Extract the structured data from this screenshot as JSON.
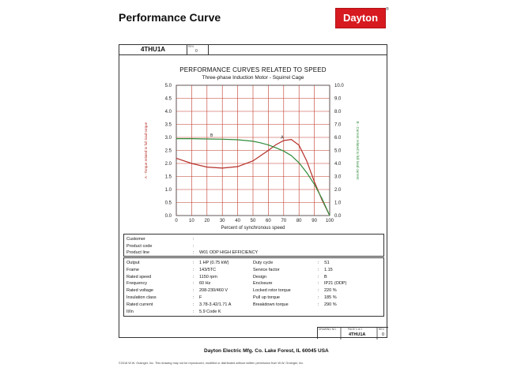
{
  "header": {
    "title": "Performance Curve",
    "logo_text": "Dayton",
    "logo_mark": "®"
  },
  "model": {
    "number": "4THU1A",
    "rev_label": "REV.",
    "rev_value": "0"
  },
  "colors": {
    "torque": "#b5302a",
    "current": "#2e8b3a",
    "grid": "#c0392b",
    "logo": "#d71920"
  },
  "chart_data": {
    "type": "line",
    "title": "PERFORMANCE CURVES RELATED TO SPEED",
    "subtitle": "Three-phase Induction Motor - Squirrel Cage",
    "xlabel": "Percent of synchronous speed",
    "ylabel_left": "A - Torque related to full load torque",
    "ylabel_right": "B - Current related to full load current",
    "xlim": [
      0,
      100
    ],
    "ylim_left": [
      0,
      5
    ],
    "ylim_right": [
      0,
      10
    ],
    "x_ticks": [
      "0",
      "10",
      "20",
      "30",
      "40",
      "50",
      "60",
      "70",
      "80",
      "90",
      "100"
    ],
    "y_left_ticks": [
      "0.0",
      "0.5",
      "1.0",
      "1.5",
      "2.0",
      "2.5",
      "3.0",
      "3.5",
      "4.0",
      "4.5",
      "5.0"
    ],
    "y_right_ticks": [
      "0.0",
      "1.0",
      "2.0",
      "3.0",
      "4.0",
      "5.0",
      "6.0",
      "7.0",
      "8.0",
      "9.0",
      "10.0"
    ],
    "grid": true,
    "series": [
      {
        "name": "A",
        "axis": "left",
        "x": [
          0,
          10,
          20,
          30,
          40,
          50,
          55,
          60,
          65,
          70,
          75,
          80,
          85,
          90,
          95,
          100
        ],
        "y": [
          2.2,
          2.0,
          1.86,
          1.82,
          1.88,
          2.1,
          2.3,
          2.5,
          2.72,
          2.88,
          2.92,
          2.7,
          2.1,
          1.3,
          0.6,
          0.0
        ]
      },
      {
        "name": "B",
        "axis": "right",
        "x": [
          0,
          10,
          20,
          30,
          40,
          50,
          55,
          60,
          65,
          70,
          75,
          80,
          85,
          90,
          95,
          100
        ],
        "y": [
          5.9,
          5.9,
          5.88,
          5.86,
          5.82,
          5.7,
          5.58,
          5.42,
          5.2,
          4.95,
          4.6,
          4.05,
          3.3,
          2.4,
          1.3,
          0.0
        ]
      }
    ]
  },
  "customer_rows": [
    {
      "label": "Customer",
      "value": ""
    },
    {
      "label": "Product code",
      "value": ""
    },
    {
      "label": "Product line",
      "value": "W01 ODP HIGH EFFICIENCY"
    }
  ],
  "spec_left": [
    {
      "label": "Output",
      "value": "1 HP (0.75 kW)"
    },
    {
      "label": "Frame",
      "value": "143/5TC"
    },
    {
      "label": "Rated speed",
      "value": "1150 rpm"
    },
    {
      "label": "Frequency",
      "value": "60 Hz"
    },
    {
      "label": "Rated voltage",
      "value": "208-230/460 V"
    },
    {
      "label": "Insulation class",
      "value": "F"
    },
    {
      "label": "Rated current",
      "value": "3.78-3.42/1.71 A"
    },
    {
      "label": "Il/In",
      "value": "5.9    Code K"
    }
  ],
  "spec_right": [
    {
      "label": "Duty cycle",
      "value": "S1"
    },
    {
      "label": "Service factor",
      "value": "1.15"
    },
    {
      "label": "Design",
      "value": "B"
    },
    {
      "label": "Enclosure",
      "value": "IP21 (ODP)"
    },
    {
      "label": "Locked rotor torque",
      "value": "220 %"
    },
    {
      "label": "Pull up torque",
      "value": "185 %"
    },
    {
      "label": "Breakdown torque",
      "value": "290 %"
    }
  ],
  "footer": {
    "drawing_label": "DRAWING NO.",
    "page_label": "PAGE  1  of  2",
    "rev_label": "REV.",
    "drawing_no": "4THU1A",
    "rev": "0",
    "company": "Dayton Electric Mfg. Co.   Lake Forest, IL  60045  USA",
    "copyright": "©2018 W.W. Grainger, Inc.   This drawing may not be reproduced, modified or distributed without written permission from W.W. Grainger, Inc."
  }
}
